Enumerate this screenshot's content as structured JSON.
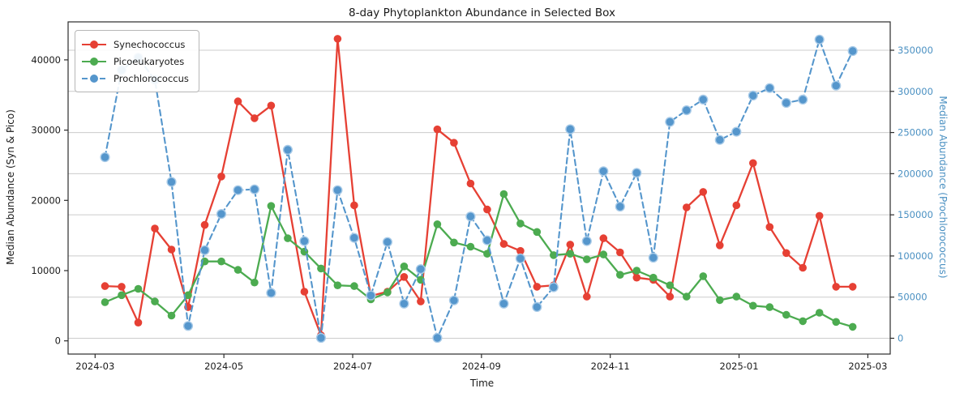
{
  "title": "8-day Phytoplankton Abundance in Selected Box",
  "colors": {
    "synechococcus": "#e64034",
    "picoeukaryotes": "#4cab50",
    "prochlorococcus": "#5596cc",
    "prochlorococcus_marker_edge": "#a9cbe8",
    "right_axis_text": "#4a90c2",
    "grid": "#cccccc",
    "spine": "#2b2b2b",
    "tick_text": "#1a1a1a"
  },
  "legend": {
    "items": [
      {
        "label": "Synechococcus",
        "dashed": false
      },
      {
        "label": "Picoeukaryotes",
        "dashed": false
      },
      {
        "label": "Prochlorococcus",
        "dashed": true
      }
    ]
  },
  "chart_data": {
    "type": "line",
    "title": "8-day Phytoplankton Abundance in Selected Box",
    "xlabel": "Time",
    "ylabel_left": "Median Abundance (Syn & Pico)",
    "ylabel_right": "Median Abundance (Prochlorococcus)",
    "x_tick_labels": [
      "2024-03",
      "2024-05",
      "2024-07",
      "2024-09",
      "2024-11",
      "2025-01",
      "2025-03"
    ],
    "left_ticks": [
      0,
      10000,
      20000,
      30000,
      40000
    ],
    "right_ticks": [
      0,
      50000,
      100000,
      150000,
      200000,
      250000,
      300000,
      350000
    ],
    "ylim_left": [
      0,
      43000
    ],
    "ylim_right": [
      0,
      363000
    ],
    "grid": "horizontal",
    "legend_position": "upper left",
    "x": [
      "2024-03-06",
      "2024-03-14",
      "2024-03-22",
      "2024-03-30",
      "2024-04-07",
      "2024-04-15",
      "2024-04-23",
      "2024-05-01",
      "2024-05-09",
      "2024-05-17",
      "2024-05-25",
      "2024-06-02",
      "2024-06-10",
      "2024-06-18",
      "2024-06-26",
      "2024-07-04",
      "2024-07-12",
      "2024-07-20",
      "2024-07-28",
      "2024-08-05",
      "2024-08-13",
      "2024-08-21",
      "2024-08-29",
      "2024-09-06",
      "2024-09-14",
      "2024-09-22",
      "2024-09-30",
      "2024-10-08",
      "2024-10-16",
      "2024-10-24",
      "2024-11-01",
      "2024-11-09",
      "2024-11-17",
      "2024-11-25",
      "2024-12-03",
      "2024-12-11",
      "2024-12-19",
      "2024-12-27",
      "2025-01-04",
      "2025-01-12",
      "2025-01-20",
      "2025-01-28",
      "2025-02-05",
      "2025-02-13",
      "2025-02-21",
      "2025-03-01"
    ],
    "series": [
      {
        "name": "Synechococcus",
        "axis": "left",
        "style": "solid",
        "values": [
          7800,
          7700,
          2600,
          16000,
          13000,
          4800,
          16500,
          23400,
          34100,
          31700,
          33500,
          null,
          7000,
          800,
          43000,
          19300,
          6400,
          7000,
          9100,
          5600,
          30100,
          28200,
          22400,
          18700,
          13800,
          12800,
          7700,
          7900,
          13700,
          6300,
          14600,
          12600,
          9000,
          8700,
          6300,
          19000,
          21200,
          13600,
          19300,
          25300,
          16200,
          12500,
          10400,
          17800,
          7700,
          7700
        ]
      },
      {
        "name": "Picoeukaryotes",
        "axis": "left",
        "style": "solid",
        "values": [
          5500,
          6500,
          7400,
          5600,
          3600,
          6500,
          11300,
          11300,
          10100,
          8300,
          19200,
          14600,
          12700,
          10300,
          7900,
          7800,
          5900,
          6900,
          10600,
          8700,
          16600,
          14000,
          13400,
          12400,
          20900,
          16700,
          15500,
          12200,
          12400,
          11600,
          12300,
          9400,
          10000,
          9000,
          7900,
          6300,
          9200,
          5800,
          6300,
          5000,
          4800,
          3700,
          2800,
          4000,
          2700,
          2000
        ]
      },
      {
        "name": "Prochlorococcus",
        "axis": "right",
        "style": "dashed",
        "values": [
          220000,
          326000,
          341000,
          314000,
          190000,
          15000,
          107000,
          151000,
          180000,
          181000,
          55000,
          229000,
          118000,
          500,
          180000,
          122000,
          52000,
          117000,
          42000,
          84000,
          500,
          46000,
          148000,
          119000,
          42000,
          97000,
          38000,
          62000,
          254000,
          118000,
          203000,
          160000,
          201000,
          98000,
          263000,
          277000,
          290000,
          241000,
          251000,
          295000,
          304000,
          286000,
          290000,
          363000,
          307000,
          349000
        ]
      }
    ]
  }
}
